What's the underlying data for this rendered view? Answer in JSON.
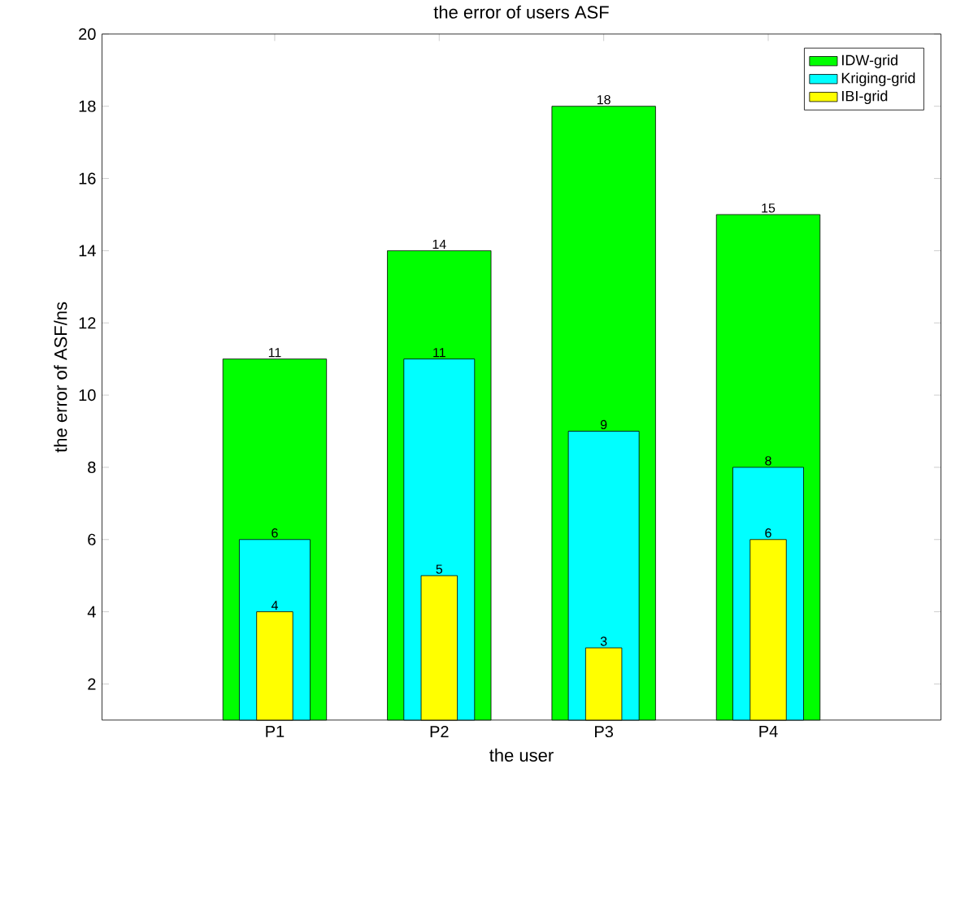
{
  "chart_data": {
    "type": "bar",
    "title": "the error of users ASF",
    "xlabel": "the user",
    "ylabel": "the error of ASF/ns",
    "categories": [
      "P1",
      "P2",
      "P3",
      "P4"
    ],
    "series": [
      {
        "name": "IDW-grid",
        "color": "#00ff00",
        "values": [
          11,
          14,
          18,
          15
        ]
      },
      {
        "name": "Kriging-grid",
        "color": "#00ffff",
        "values": [
          6,
          11,
          9,
          8
        ]
      },
      {
        "name": "IBI-grid",
        "color": "#ffff00",
        "values": [
          4,
          5,
          3,
          6
        ]
      }
    ],
    "ylim": [
      1,
      20
    ],
    "yticks": [
      2,
      4,
      6,
      8,
      10,
      12,
      14,
      16,
      18,
      20
    ],
    "legend": "top right",
    "data_labels": true
  }
}
